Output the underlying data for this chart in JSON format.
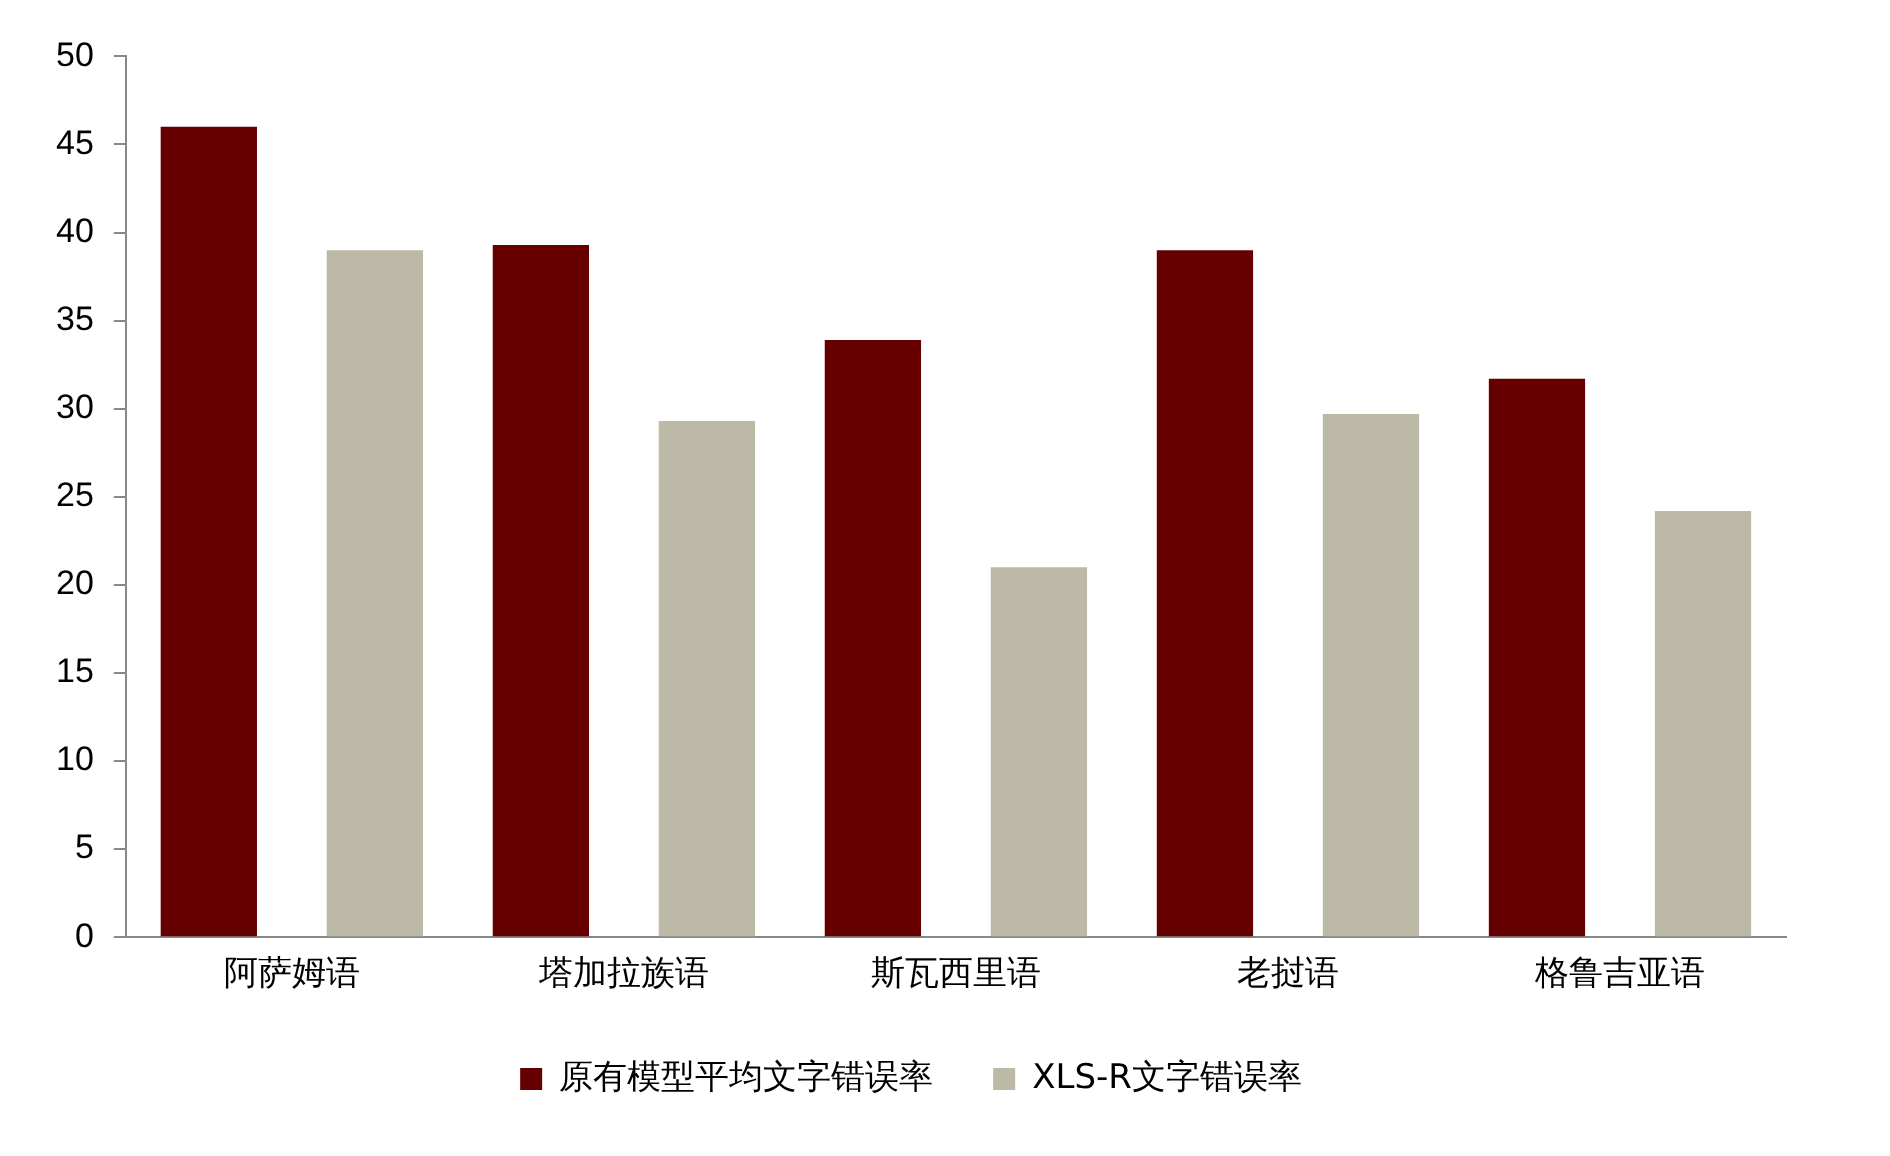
{
  "chart_data": {
    "type": "bar",
    "categories": [
      "阿萨姆语",
      "塔加拉族语",
      "斯瓦西里语",
      "老挝语",
      "格鲁吉亚语"
    ],
    "series": [
      {
        "name": "原有模型平均文字错误率",
        "color": "#660000",
        "values": [
          46,
          39.3,
          33.9,
          39,
          31.7
        ]
      },
      {
        "name": "XLS-R文字错误率",
        "color": "#bcbaa6",
        "values": [
          39,
          29.3,
          21,
          29.7,
          24.2
        ]
      }
    ],
    "ylim": [
      0,
      50
    ],
    "yticks": [
      0,
      5,
      10,
      15,
      20,
      25,
      30,
      35,
      40,
      45,
      50
    ],
    "grid": false,
    "legend": "bottom"
  }
}
